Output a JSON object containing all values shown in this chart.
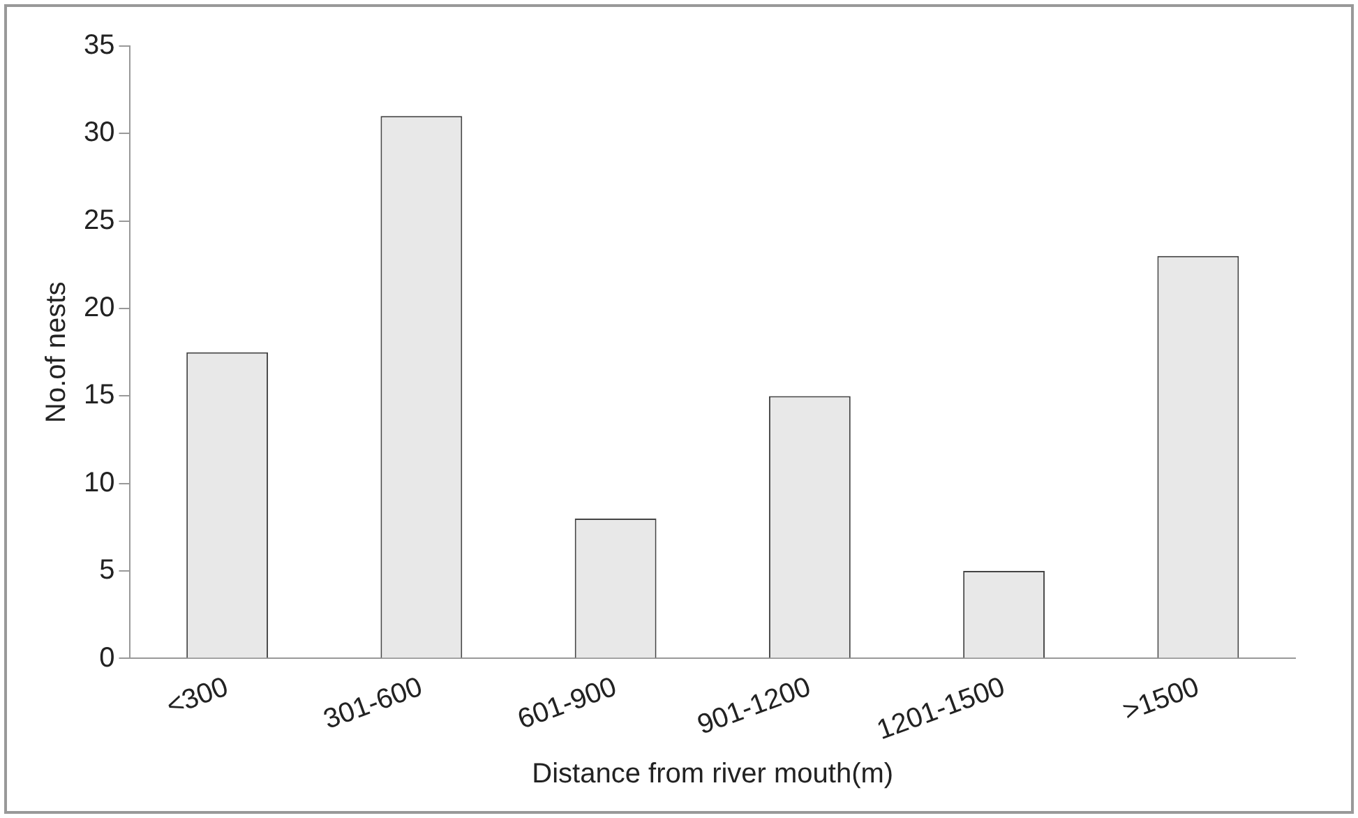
{
  "chart_data": {
    "type": "bar",
    "xlabel": "Distance from river mouth(m)",
    "ylabel": "No.of nests",
    "categories": [
      "<300",
      "301-600",
      "601-900",
      "901-1200",
      "1201-1500",
      ">1500"
    ],
    "values": [
      17.5,
      31,
      8,
      15,
      5,
      23
    ],
    "color": "#e8e8e8",
    "ylim": [
      0,
      35
    ],
    "yticks": [
      0,
      5,
      10,
      15,
      20,
      25,
      30,
      35
    ],
    "grid": false,
    "legend": false
  }
}
